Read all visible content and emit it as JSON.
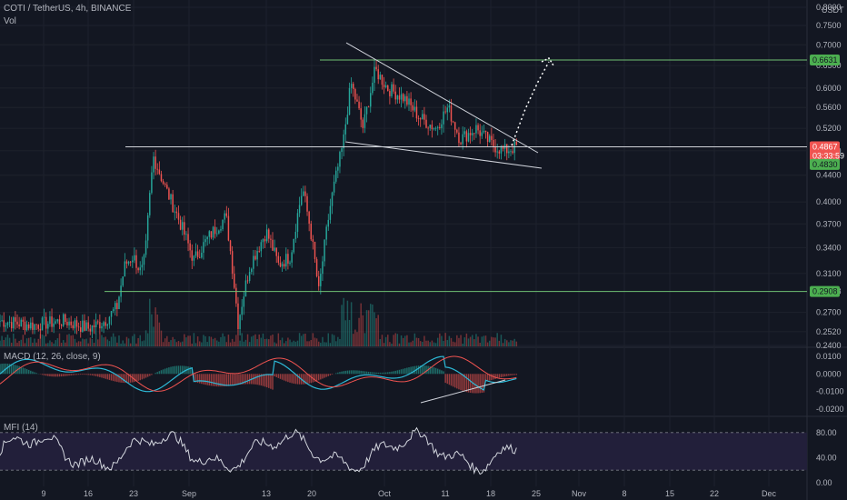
{
  "header": {
    "symbol_title": "COTI / TetherUS, 4h, BINANCE",
    "volume_label": "Vol"
  },
  "currency": "USDT",
  "indicators": {
    "macd_label": "MACD (12, 26, close, 9)",
    "mfi_label": "MFI (14)"
  },
  "colors": {
    "background": "#131722",
    "grid": "#1e222d",
    "up": "#26a69a",
    "down": "#ef5350",
    "level_line": "#6fbf73",
    "trend_line": "#d1d4dc",
    "macd_line": "#2db9d6",
    "signal_line": "#ef5350",
    "mfi_line": "#d1d4dc",
    "mfi_band": "#221f3a",
    "price_tag_red": "#ef5350",
    "level_tag_green": "#4caf50"
  },
  "chart_data": [
    {
      "type": "candlestick",
      "name": "price",
      "x_axis": {
        "ticks": [
          "9",
          "16",
          "23",
          "Sep",
          "13",
          "20",
          "Oct",
          "11",
          "18",
          "25",
          "Nov",
          "8",
          "15",
          "22",
          "Dec"
        ]
      },
      "y_axis": {
        "scale": "log",
        "range": [
          0.24,
          0.8
        ],
        "ticks": [
          "0.8000",
          "0.7500",
          "0.7000",
          "0.6500",
          "0.6000",
          "0.5600",
          "0.5200",
          "0.4800",
          "0.4400",
          "0.4000",
          "0.3700",
          "0.3400",
          "0.3100",
          "0.2908",
          "0.2700",
          "0.2520",
          "0.2400"
        ]
      },
      "price_path": [
        {
          "x": 0.0,
          "y": 0.262
        },
        {
          "x": 0.04,
          "y": 0.258
        },
        {
          "x": 0.08,
          "y": 0.262
        },
        {
          "x": 0.11,
          "y": 0.255
        },
        {
          "x": 0.13,
          "y": 0.262
        },
        {
          "x": 0.145,
          "y": 0.275
        },
        {
          "x": 0.155,
          "y": 0.32
        },
        {
          "x": 0.165,
          "y": 0.33
        },
        {
          "x": 0.175,
          "y": 0.31
        },
        {
          "x": 0.18,
          "y": 0.33
        },
        {
          "x": 0.19,
          "y": 0.47
        },
        {
          "x": 0.205,
          "y": 0.42
        },
        {
          "x": 0.22,
          "y": 0.38
        },
        {
          "x": 0.24,
          "y": 0.325
        },
        {
          "x": 0.26,
          "y": 0.355
        },
        {
          "x": 0.28,
          "y": 0.38
        },
        {
          "x": 0.295,
          "y": 0.26
        },
        {
          "x": 0.31,
          "y": 0.32
        },
        {
          "x": 0.33,
          "y": 0.36
        },
        {
          "x": 0.345,
          "y": 0.32
        },
        {
          "x": 0.36,
          "y": 0.33
        },
        {
          "x": 0.375,
          "y": 0.42
        },
        {
          "x": 0.385,
          "y": 0.36
        },
        {
          "x": 0.395,
          "y": 0.29
        },
        {
          "x": 0.41,
          "y": 0.4
        },
        {
          "x": 0.425,
          "y": 0.49
        },
        {
          "x": 0.435,
          "y": 0.61
        },
        {
          "x": 0.45,
          "y": 0.52
        },
        {
          "x": 0.465,
          "y": 0.64
        },
        {
          "x": 0.48,
          "y": 0.6
        },
        {
          "x": 0.5,
          "y": 0.58
        },
        {
          "x": 0.52,
          "y": 0.54
        },
        {
          "x": 0.54,
          "y": 0.52
        },
        {
          "x": 0.555,
          "y": 0.56
        },
        {
          "x": 0.57,
          "y": 0.5
        },
        {
          "x": 0.59,
          "y": 0.52
        },
        {
          "x": 0.61,
          "y": 0.49
        },
        {
          "x": 0.625,
          "y": 0.48
        },
        {
          "x": 0.64,
          "y": 0.4867
        }
      ],
      "levels": [
        {
          "label": "0.6631",
          "value": 0.6631
        },
        {
          "label": "0.4867",
          "value": 0.4867,
          "countdown": "03:33:59"
        },
        {
          "label": "0.4830",
          "value": 0.483
        },
        {
          "label": "0.2908",
          "value": 0.2908
        }
      ]
    },
    {
      "type": "histogram",
      "name": "MACD",
      "y_axis": {
        "ticks": [
          "0.0100",
          "0.0000",
          "-0.0100",
          "-0.0200"
        ],
        "range": [
          -0.022,
          0.012
        ]
      }
    },
    {
      "type": "line",
      "name": "MFI",
      "y_axis": {
        "ticks": [
          "80.00",
          "40.00",
          "0.00"
        ],
        "range": [
          0,
          100
        ],
        "band": [
          20,
          80
        ]
      }
    }
  ]
}
